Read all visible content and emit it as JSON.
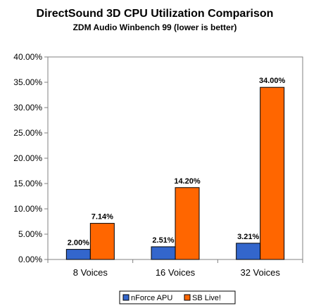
{
  "chart_data": {
    "type": "bar",
    "title": "DirectSound 3D CPU Utilization Comparison",
    "subtitle": "ZDM Audio Winbench 99 (lower is better)",
    "categories": [
      "8 Voices",
      "16 Voices",
      "32 Voices"
    ],
    "series": [
      {
        "name": "nForce APU",
        "color": "#3366cc",
        "values": [
          2.0,
          2.51,
          3.21
        ],
        "labels": [
          "2.00%",
          "2.51%",
          "3.21%"
        ]
      },
      {
        "name": "SB Live!",
        "color": "#ff6600",
        "values": [
          7.14,
          14.2,
          34.0
        ],
        "labels": [
          "7.14%",
          "14.20%",
          "34.00%"
        ]
      }
    ],
    "ylim": [
      0,
      40
    ],
    "yticks": [
      0,
      5,
      10,
      15,
      20,
      25,
      30,
      35,
      40
    ],
    "ytick_labels": [
      "0.00%",
      "5.00%",
      "10.00%",
      "15.00%",
      "20.00%",
      "25.00%",
      "30.00%",
      "35.00%",
      "40.00%"
    ],
    "xlabel": "",
    "ylabel": "",
    "grid": false,
    "legend_position": "bottom"
  }
}
